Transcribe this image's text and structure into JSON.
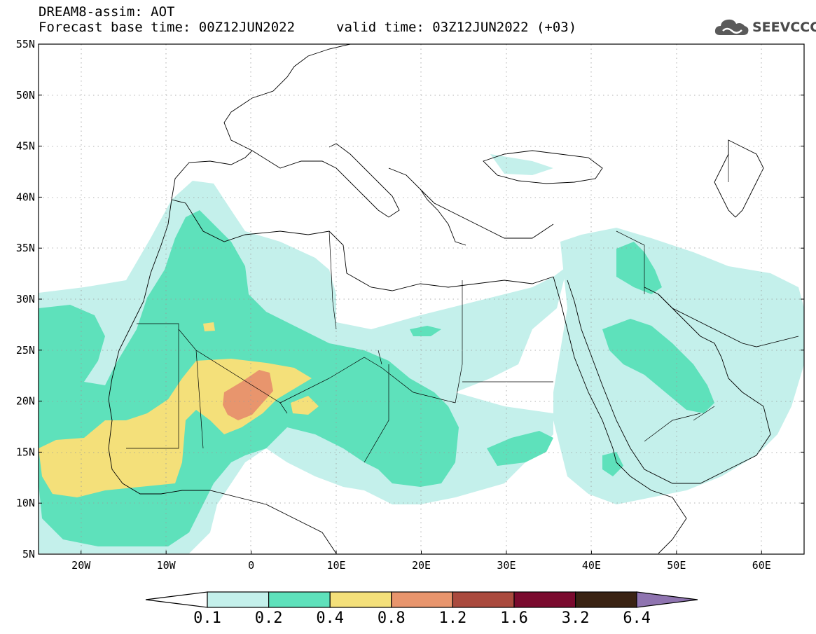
{
  "header": {
    "model_line": "DREAM8-assim: AOT",
    "base_time": "Forecast base time: 00Z12JUN2022",
    "valid_time": "valid time: 03Z12JUN2022 (+03)",
    "logo_text": "SEEVCCC"
  },
  "map": {
    "lon_range": [
      -25,
      65
    ],
    "lat_range": [
      5,
      55
    ],
    "lat_labels": [
      "5N",
      "10N",
      "15N",
      "20N",
      "25N",
      "30N",
      "35N",
      "40N",
      "45N",
      "50N",
      "55N"
    ],
    "lon_labels": [
      "20W",
      "10W",
      "0",
      "10E",
      "20E",
      "30E",
      "40E",
      "50E",
      "60E"
    ],
    "grid": true
  },
  "colorbar": {
    "labels": [
      "0.1",
      "0.2",
      "0.4",
      "0.8",
      "1.2",
      "1.6",
      "3.2",
      "6.4"
    ],
    "colors": [
      "#c4f0eb",
      "#5ee1bb",
      "#f4e07a",
      "#e8956d",
      "#aa4a3e",
      "#7a0a2e",
      "#3a2313",
      "#8f74b0"
    ]
  }
}
